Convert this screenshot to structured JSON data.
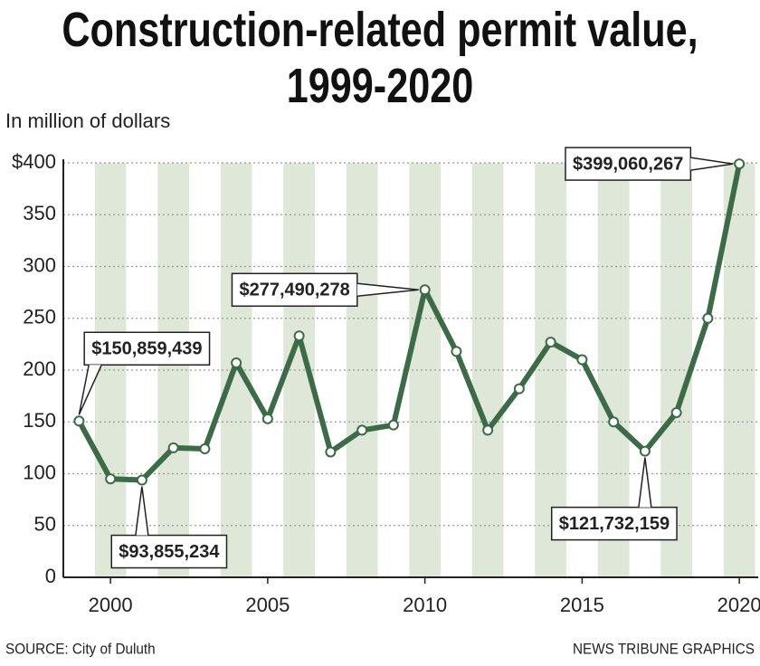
{
  "chart_data": {
    "type": "line",
    "title": "Construction-related permit value, 1999-2020",
    "subtitle": "In million of dollars",
    "source": "SOURCE: City of Duluth",
    "credit": "NEWS TRIBUNE GRAPHICS",
    "x": [
      1999,
      2000,
      2001,
      2002,
      2003,
      2004,
      2005,
      2006,
      2007,
      2008,
      2009,
      2010,
      2011,
      2012,
      2013,
      2014,
      2015,
      2016,
      2017,
      2018,
      2019,
      2020
    ],
    "series": [
      {
        "name": "Permit value",
        "color": "#3b6b47",
        "values": [
          150.859439,
          95,
          93.855234,
          125,
          124,
          207,
          153,
          233,
          121,
          142,
          147,
          277.490278,
          218,
          142,
          182,
          227,
          210,
          150,
          121.732159,
          159,
          250,
          399.060267
        ],
        "value_labels": [
          "$150,859,439",
          null,
          "$93,855,234",
          null,
          null,
          null,
          null,
          null,
          null,
          null,
          null,
          "$277,490,278",
          null,
          null,
          null,
          null,
          null,
          null,
          "$121,732,159",
          null,
          null,
          "$399,060,267"
        ]
      }
    ],
    "xlim": [
      1998.5,
      2020.6
    ],
    "xticks": [
      2000,
      2005,
      2010,
      2015,
      2020
    ],
    "ylim": [
      0,
      400
    ],
    "yticks": [
      0,
      50,
      100,
      150,
      200,
      250,
      300,
      350,
      {
        "value": 400,
        "label": "$400"
      }
    ],
    "grid": true,
    "stripe_color": "#dfe8d8"
  }
}
